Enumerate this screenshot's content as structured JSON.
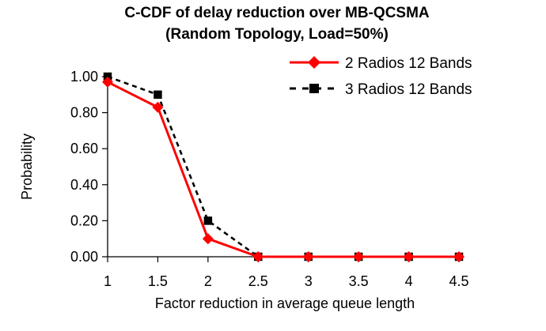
{
  "chart_data": {
    "type": "line",
    "title": "C-CDF of delay reduction over MB-QCSMA",
    "subtitle": "(Random Topology, Load=50%)",
    "xlabel": "Factor reduction in average queue length",
    "ylabel": "Probability",
    "x": [
      1,
      1.5,
      2,
      2.5,
      3,
      3.5,
      4,
      4.5
    ],
    "x_tick_labels": [
      "1",
      "1.5",
      "2",
      "2.5",
      "3",
      "3.5",
      "4",
      "4.5"
    ],
    "y_tick_labels": [
      "0.00",
      "0.20",
      "0.40",
      "0.60",
      "0.80",
      "1.00"
    ],
    "y_ticks": [
      0,
      0.2,
      0.4,
      0.6,
      0.8,
      1.0
    ],
    "xlim": [
      1,
      4.5
    ],
    "ylim": [
      0,
      1.0
    ],
    "grid": false,
    "legend_position": "top-right",
    "series": [
      {
        "name": "2 Radios 12 Bands",
        "values": [
          0.97,
          0.83,
          0.1,
          0.0,
          0.0,
          0.0,
          0.0,
          0.0
        ],
        "color": "#ff0000",
        "line_style": "solid",
        "marker": "diamond"
      },
      {
        "name": "3 Radios 12 Bands",
        "values": [
          1.0,
          0.9,
          0.2,
          0.0,
          0.0,
          0.0,
          0.0,
          0.0
        ],
        "color": "#000000",
        "line_style": "dashed",
        "marker": "square"
      }
    ]
  }
}
